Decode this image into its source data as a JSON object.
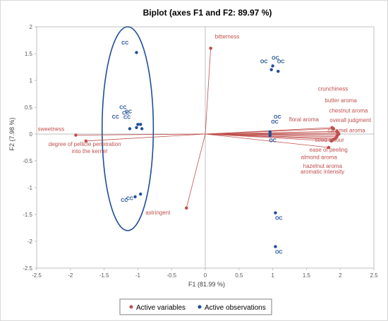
{
  "chart_data": {
    "type": "scatter",
    "title": "Biplot (axes F1 and F2: 89.97 %)",
    "xlabel": "F1 (81.99 %)",
    "ylabel": "F2 (7.98 %)",
    "xlim": [
      -2.5,
      2.5
    ],
    "ylim": [
      -2.5,
      2
    ],
    "xticks": [
      "-2.5",
      "-2",
      "-1.5",
      "-1",
      "-0.5",
      "0",
      "0.5",
      "1",
      "1.5",
      "2",
      "2.5"
    ],
    "yticks": [
      "2",
      "1.5",
      "1",
      "0.5",
      "0",
      "-0.5",
      "-1",
      "-1.5",
      "-2",
      "-2.5"
    ],
    "grid": false,
    "legend_position": "bottom",
    "colors": {
      "variables": "#c0504d",
      "observations": "#1f4e99",
      "ellipse": "#1f4e99"
    },
    "series": [
      {
        "name": "Active variables",
        "points": [
          {
            "label": "bitterness",
            "x": 0.08,
            "y": 1.6
          },
          {
            "label": "sweetness",
            "x": -1.92,
            "y": -0.02
          },
          {
            "label": "degree of pellicle penetration into the kernel",
            "x": -1.77,
            "y": -0.13
          },
          {
            "label": "astringent",
            "x": -0.28,
            "y": -1.38
          },
          {
            "label": "crunchiness",
            "x": 1.9,
            "y": 0.1
          },
          {
            "label": "butter aroma",
            "x": 1.95,
            "y": 0.05
          },
          {
            "label": "chestnut aroma",
            "x": 1.97,
            "y": 0.02
          },
          {
            "label": "overall judgment",
            "x": 1.98,
            "y": 0.0
          },
          {
            "label": "caramel aroma",
            "x": 1.96,
            "y": -0.02
          },
          {
            "label": "seed colour",
            "x": 1.95,
            "y": -0.05
          },
          {
            "label": "ease of peeling",
            "x": 1.93,
            "y": -0.08
          },
          {
            "label": "almond aroma",
            "x": 1.9,
            "y": -0.1
          },
          {
            "label": "hazelnut aroma",
            "x": 1.87,
            "y": -0.13
          },
          {
            "label": "aromatic intensity",
            "x": 1.83,
            "y": -0.25
          },
          {
            "label": "floral aroma",
            "x": 1.88,
            "y": 0.12
          }
        ]
      },
      {
        "name": "Active observations",
        "points": [
          {
            "label": "CC",
            "x": -1.02,
            "y": 1.52
          },
          {
            "label": "CC",
            "x": -1.12,
            "y": 0.1
          },
          {
            "label": "CC",
            "x": -1.0,
            "y": 0.18
          },
          {
            "label": "CC",
            "x": -0.96,
            "y": 0.18
          },
          {
            "label": "CC",
            "x": -1.02,
            "y": 0.12
          },
          {
            "label": "CC",
            "x": -0.94,
            "y": 0.1
          },
          {
            "label": "CC",
            "x": -1.04,
            "y": -1.17
          },
          {
            "label": "CC",
            "x": -0.96,
            "y": -1.12
          },
          {
            "label": "OC",
            "x": 1.0,
            "y": 1.27
          },
          {
            "label": "OC",
            "x": 0.98,
            "y": 1.2
          },
          {
            "label": "OC",
            "x": 1.08,
            "y": 1.17
          },
          {
            "label": "OC",
            "x": 0.96,
            "y": 0.04
          },
          {
            "label": "OC",
            "x": 0.96,
            "y": 0.0
          },
          {
            "label": "OC",
            "x": 0.96,
            "y": -0.03
          },
          {
            "label": "OC",
            "x": 1.04,
            "y": -1.47
          },
          {
            "label": "OC",
            "x": 1.04,
            "y": -2.1
          }
        ]
      }
    ],
    "group_labels": [
      {
        "text": "CC",
        "x": -1.19,
        "y": 1.67
      },
      {
        "text": "CC",
        "x": -1.22,
        "y": 0.47
      },
      {
        "text": "CC",
        "x": -1.18,
        "y": 0.36
      },
      {
        "text": "CC",
        "x": -1.16,
        "y": 0.28
      },
      {
        "text": "CC",
        "x": -1.33,
        "y": 0.29
      },
      {
        "text": "CC",
        "x": -1.14,
        "y": 0.39
      },
      {
        "text": "CC",
        "x": -1.2,
        "y": -1.26
      },
      {
        "text": "CC",
        "x": -1.12,
        "y": -1.23
      },
      {
        "text": "OC",
        "x": 1.04,
        "y": 1.39
      },
      {
        "text": "OC",
        "x": 0.87,
        "y": 1.32
      },
      {
        "text": "OC",
        "x": 1.12,
        "y": 1.32
      },
      {
        "text": "OC",
        "x": 1.07,
        "y": 0.29
      },
      {
        "text": "OC",
        "x": 1.03,
        "y": 0.2
      },
      {
        "text": "OC",
        "x": 1.0,
        "y": -0.15
      },
      {
        "text": "OC",
        "x": 1.09,
        "y": -1.6
      },
      {
        "text": "OC",
        "x": 1.09,
        "y": -2.23
      }
    ],
    "ellipse": {
      "cx": -1.15,
      "cy": 0.1,
      "rx": 0.38,
      "ry": 1.9
    }
  }
}
